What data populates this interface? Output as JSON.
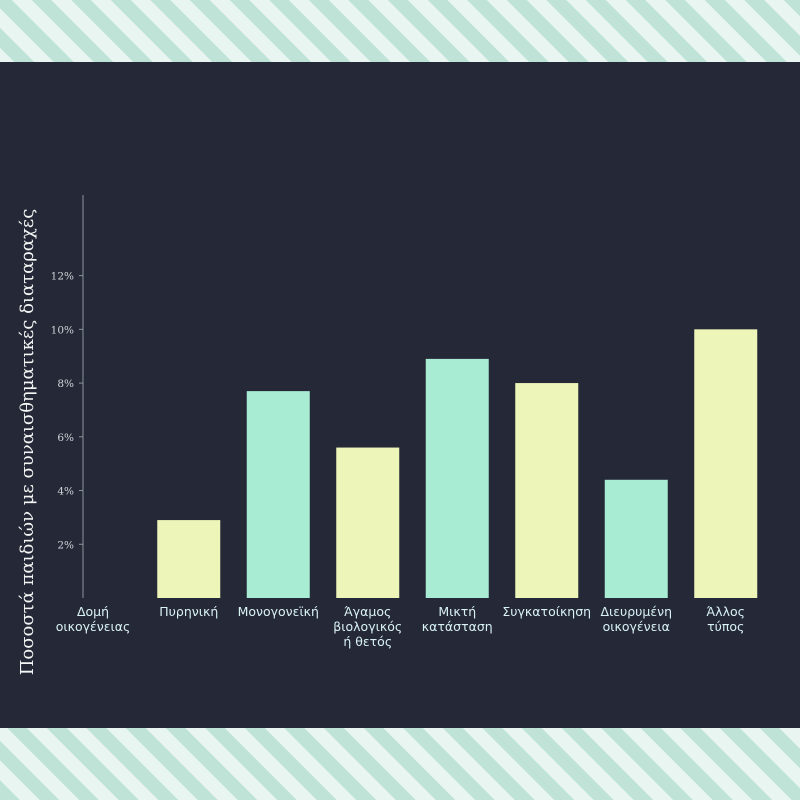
{
  "chart_data": {
    "type": "bar",
    "ylabel": "Ποσοστά παιδιών με συναισθηματικές διαταραχές",
    "xlabel": "Δομή οικογένειας",
    "categories": [
      "Πυρηνική",
      "Μονογονεϊκή",
      "Άγαμος βιολογικός ή θετός",
      "Μικτή κατάσταση",
      "Συγκατοίκηση",
      "Διευρυμένη οικογένεια",
      "Άλλος τύπος"
    ],
    "category_lines": [
      [
        "Πυρηνική"
      ],
      [
        "Μονογονεϊκή"
      ],
      [
        "Άγαμος",
        "βιολογικός",
        "ή θετός"
      ],
      [
        "Μικτή",
        "κατάσταση"
      ],
      [
        "Συγκατοίκηση"
      ],
      [
        "Διευρυμένη",
        "οικογένεια"
      ],
      [
        "Άλλος",
        "τύπος"
      ]
    ],
    "xlabel_lines": [
      "Δομή",
      "οικογένειας"
    ],
    "values": [
      2.9,
      7.7,
      5.6,
      8.9,
      8.0,
      4.4,
      10.0
    ],
    "ylim": [
      0,
      15
    ],
    "yticks": [
      2,
      4,
      6,
      8,
      10,
      12
    ],
    "ytick_labels": [
      "2%",
      "4%",
      "6%",
      "8%",
      "10%",
      "12%"
    ],
    "grid": false,
    "colors": {
      "yellow": "#eef5b8",
      "mint": "#a9ecd4",
      "axis": "#8a9699",
      "background": "#252836"
    },
    "bar_color_sequence": [
      "yellow",
      "mint",
      "yellow",
      "mint",
      "yellow",
      "mint",
      "yellow"
    ]
  }
}
